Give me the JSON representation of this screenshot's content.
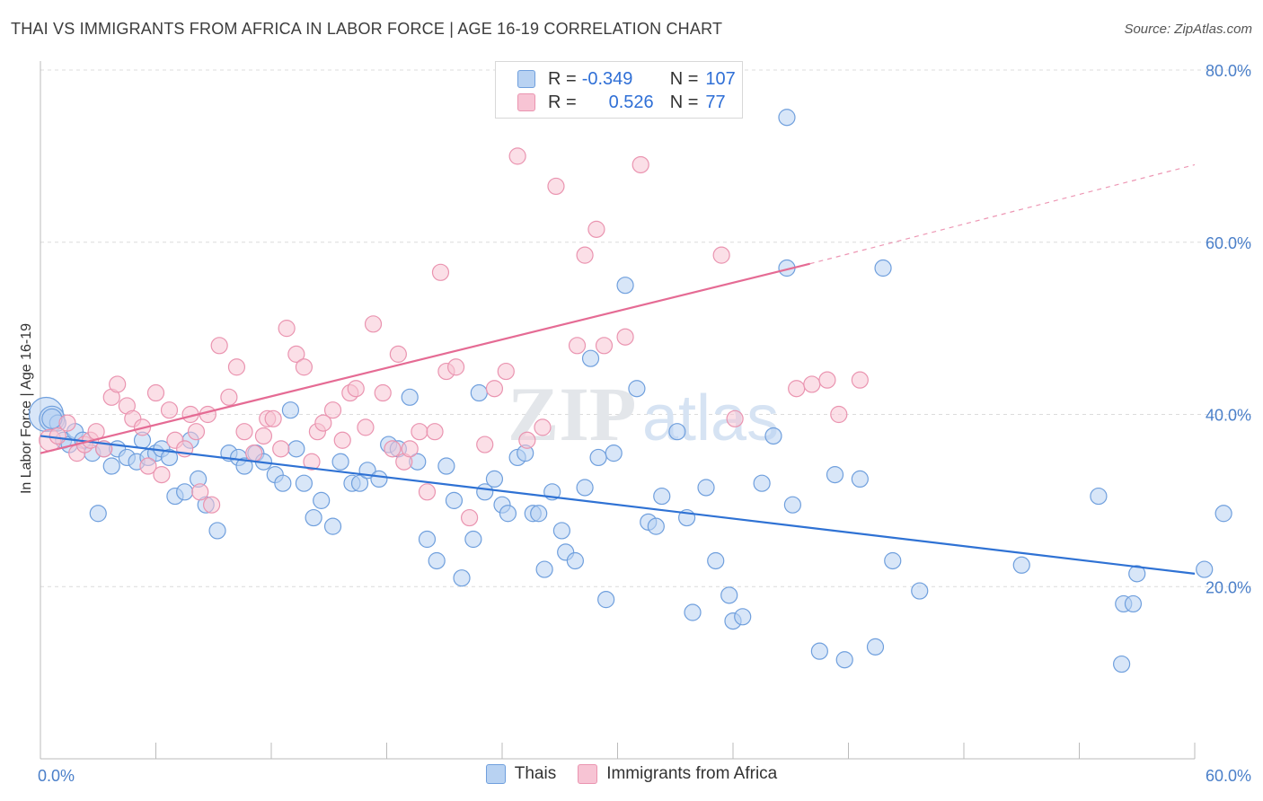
{
  "title": "THAI VS IMMIGRANTS FROM AFRICA IN LABOR FORCE | AGE 16-19 CORRELATION CHART",
  "source": "Source: ZipAtlas.com",
  "watermark": "ZIPatlas",
  "colors": {
    "thai_fill": "#b8d2f2",
    "thai_stroke": "#6f9fdd",
    "thai_line": "#2f72d4",
    "africa_fill": "#f7c4d4",
    "africa_stroke": "#ea94b0",
    "africa_line": "#e56b94",
    "axis_text": "#4a7fc9",
    "grid": "#dcdcdc"
  },
  "legend": {
    "thai": {
      "r_label": "R =",
      "r_value": "-0.349",
      "n_label": "N =",
      "n_value": "107"
    },
    "africa": {
      "r_label": "R =",
      "r_value": "0.526",
      "n_label": "N =",
      "n_value": "77"
    }
  },
  "chart_data": {
    "type": "scatter",
    "title": "THAI VS IMMIGRANTS FROM AFRICA IN LABOR FORCE | AGE 16-19 CORRELATION CHART",
    "xlabel": "",
    "ylabel": "In Labor Force | Age 16-19",
    "xlim": [
      0,
      60
    ],
    "ylim": [
      0,
      80
    ],
    "x_tick_labels": [
      "0.0%",
      "60.0%"
    ],
    "y_tick_values": [
      20,
      40,
      60,
      80
    ],
    "y_tick_labels": [
      "20.0%",
      "40.0%",
      "60.0%",
      "80.0%"
    ],
    "grid": "horizontal dashed",
    "legend_placement": "bottom-center",
    "series": [
      {
        "name": "Thais",
        "trend": {
          "x": [
            0,
            60
          ],
          "y": [
            37.5,
            21.5
          ]
        },
        "points": [
          [
            0.3,
            40
          ],
          [
            0.6,
            39.5
          ],
          [
            0.9,
            39
          ],
          [
            1.2,
            37
          ],
          [
            1.5,
            36.5
          ],
          [
            1.8,
            38
          ],
          [
            2.2,
            37
          ],
          [
            2.7,
            35.5
          ],
          [
            3,
            28.5
          ],
          [
            3.3,
            36
          ],
          [
            3.7,
            34
          ],
          [
            4,
            36
          ],
          [
            4.5,
            35
          ],
          [
            5,
            34.5
          ],
          [
            5.3,
            37
          ],
          [
            5.6,
            35
          ],
          [
            6,
            35.5
          ],
          [
            6.3,
            36
          ],
          [
            6.7,
            35
          ],
          [
            7,
            30.5
          ],
          [
            7.5,
            31
          ],
          [
            7.8,
            37
          ],
          [
            8.2,
            32.5
          ],
          [
            8.6,
            29.5
          ],
          [
            9.2,
            26.5
          ],
          [
            9.8,
            35.5
          ],
          [
            10.3,
            35
          ],
          [
            10.6,
            34
          ],
          [
            11.2,
            35.5
          ],
          [
            11.6,
            34.5
          ],
          [
            12.2,
            33
          ],
          [
            12.6,
            32
          ],
          [
            13,
            40.5
          ],
          [
            13.3,
            36
          ],
          [
            13.7,
            32
          ],
          [
            14.2,
            28
          ],
          [
            14.6,
            30
          ],
          [
            15.2,
            27
          ],
          [
            15.6,
            34.5
          ],
          [
            16.2,
            32
          ],
          [
            16.6,
            32
          ],
          [
            17,
            33.5
          ],
          [
            17.6,
            32.5
          ],
          [
            18.1,
            36.5
          ],
          [
            18.6,
            36
          ],
          [
            19.2,
            42
          ],
          [
            19.6,
            34.5
          ],
          [
            20.1,
            25.5
          ],
          [
            20.6,
            23
          ],
          [
            21.1,
            34
          ],
          [
            21.5,
            30
          ],
          [
            21.9,
            21
          ],
          [
            22.5,
            25.5
          ],
          [
            22.8,
            42.5
          ],
          [
            23.1,
            31
          ],
          [
            23.6,
            32.5
          ],
          [
            24,
            29.5
          ],
          [
            24.3,
            28.5
          ],
          [
            24.8,
            35
          ],
          [
            25.2,
            35.5
          ],
          [
            25.6,
            28.5
          ],
          [
            25.9,
            28.5
          ],
          [
            26.2,
            22
          ],
          [
            26.6,
            31
          ],
          [
            27.1,
            26.5
          ],
          [
            27.3,
            24
          ],
          [
            27.8,
            23
          ],
          [
            28.3,
            31.5
          ],
          [
            28.6,
            46.5
          ],
          [
            29,
            35
          ],
          [
            29.4,
            18.5
          ],
          [
            29.8,
            35.5
          ],
          [
            30.4,
            55
          ],
          [
            31,
            43
          ],
          [
            31.6,
            27.5
          ],
          [
            32,
            27
          ],
          [
            32.3,
            30.5
          ],
          [
            33.1,
            38
          ],
          [
            33.6,
            28
          ],
          [
            33.9,
            17
          ],
          [
            34.6,
            31.5
          ],
          [
            35.1,
            23
          ],
          [
            35.8,
            19
          ],
          [
            36,
            16
          ],
          [
            36.5,
            16.5
          ],
          [
            37.5,
            32
          ],
          [
            38.1,
            37.5
          ],
          [
            38.8,
            74.5
          ],
          [
            38.8,
            57
          ],
          [
            39.1,
            29.5
          ],
          [
            40.5,
            12.5
          ],
          [
            41.3,
            33
          ],
          [
            41.8,
            11.5
          ],
          [
            42.6,
            32.5
          ],
          [
            43.4,
            13
          ],
          [
            43.8,
            57
          ],
          [
            44.3,
            23
          ],
          [
            45.7,
            19.5
          ],
          [
            51,
            22.5
          ],
          [
            55,
            30.5
          ],
          [
            56.2,
            11
          ],
          [
            56.3,
            18
          ],
          [
            56.8,
            18
          ],
          [
            57,
            21.5
          ],
          [
            60.5,
            22
          ],
          [
            61.5,
            28.5
          ],
          [
            0.6,
            39.5
          ]
        ]
      },
      {
        "name": "Immigrants from Africa",
        "trend": {
          "x": [
            0,
            40
          ],
          "y": [
            35.5,
            57.5
          ]
        },
        "trend_dashed": {
          "x": [
            40,
            60
          ],
          "y": [
            57.5,
            69
          ]
        },
        "points": [
          [
            0.5,
            37
          ],
          [
            0.9,
            37.5
          ],
          [
            1.4,
            39
          ],
          [
            1.9,
            35.5
          ],
          [
            2.3,
            36.5
          ],
          [
            2.6,
            37
          ],
          [
            2.9,
            38
          ],
          [
            3.3,
            36
          ],
          [
            3.7,
            42
          ],
          [
            4,
            43.5
          ],
          [
            4.5,
            41
          ],
          [
            4.8,
            39.5
          ],
          [
            5.3,
            38.5
          ],
          [
            5.6,
            34
          ],
          [
            6,
            42.5
          ],
          [
            6.3,
            33
          ],
          [
            6.7,
            40.5
          ],
          [
            7,
            37
          ],
          [
            7.5,
            36
          ],
          [
            7.8,
            40
          ],
          [
            8.1,
            38
          ],
          [
            8.3,
            31
          ],
          [
            8.7,
            40
          ],
          [
            8.9,
            29.5
          ],
          [
            9.3,
            48
          ],
          [
            9.8,
            42
          ],
          [
            10.2,
            45.5
          ],
          [
            10.6,
            38
          ],
          [
            11.1,
            35.5
          ],
          [
            11.6,
            37.5
          ],
          [
            11.8,
            39.5
          ],
          [
            12.1,
            39.5
          ],
          [
            12.5,
            36
          ],
          [
            12.8,
            50
          ],
          [
            13.3,
            47
          ],
          [
            13.7,
            45.5
          ],
          [
            14.1,
            34.5
          ],
          [
            14.4,
            38
          ],
          [
            14.7,
            39
          ],
          [
            15.2,
            40.5
          ],
          [
            15.7,
            37
          ],
          [
            16.1,
            42.5
          ],
          [
            16.4,
            43
          ],
          [
            16.9,
            38.5
          ],
          [
            17.3,
            50.5
          ],
          [
            17.8,
            42.5
          ],
          [
            18.3,
            36
          ],
          [
            18.6,
            47
          ],
          [
            18.9,
            34.5
          ],
          [
            19.2,
            36
          ],
          [
            19.7,
            38
          ],
          [
            20.1,
            31
          ],
          [
            20.5,
            38
          ],
          [
            20.8,
            56.5
          ],
          [
            21.1,
            45
          ],
          [
            21.6,
            45.5
          ],
          [
            22.3,
            28
          ],
          [
            23.1,
            36.5
          ],
          [
            23.6,
            43
          ],
          [
            24.2,
            45
          ],
          [
            24.8,
            70
          ],
          [
            25.3,
            37
          ],
          [
            26.1,
            38.5
          ],
          [
            26.8,
            66.5
          ],
          [
            27.9,
            48
          ],
          [
            28.3,
            58.5
          ],
          [
            28.9,
            61.5
          ],
          [
            29.3,
            48
          ],
          [
            30.4,
            49
          ],
          [
            31.2,
            69
          ],
          [
            35.4,
            58.5
          ],
          [
            36.1,
            39.5
          ],
          [
            39.3,
            43
          ],
          [
            40.1,
            43.5
          ],
          [
            40.9,
            44
          ],
          [
            41.5,
            40
          ],
          [
            42.6,
            44
          ]
        ]
      }
    ]
  }
}
